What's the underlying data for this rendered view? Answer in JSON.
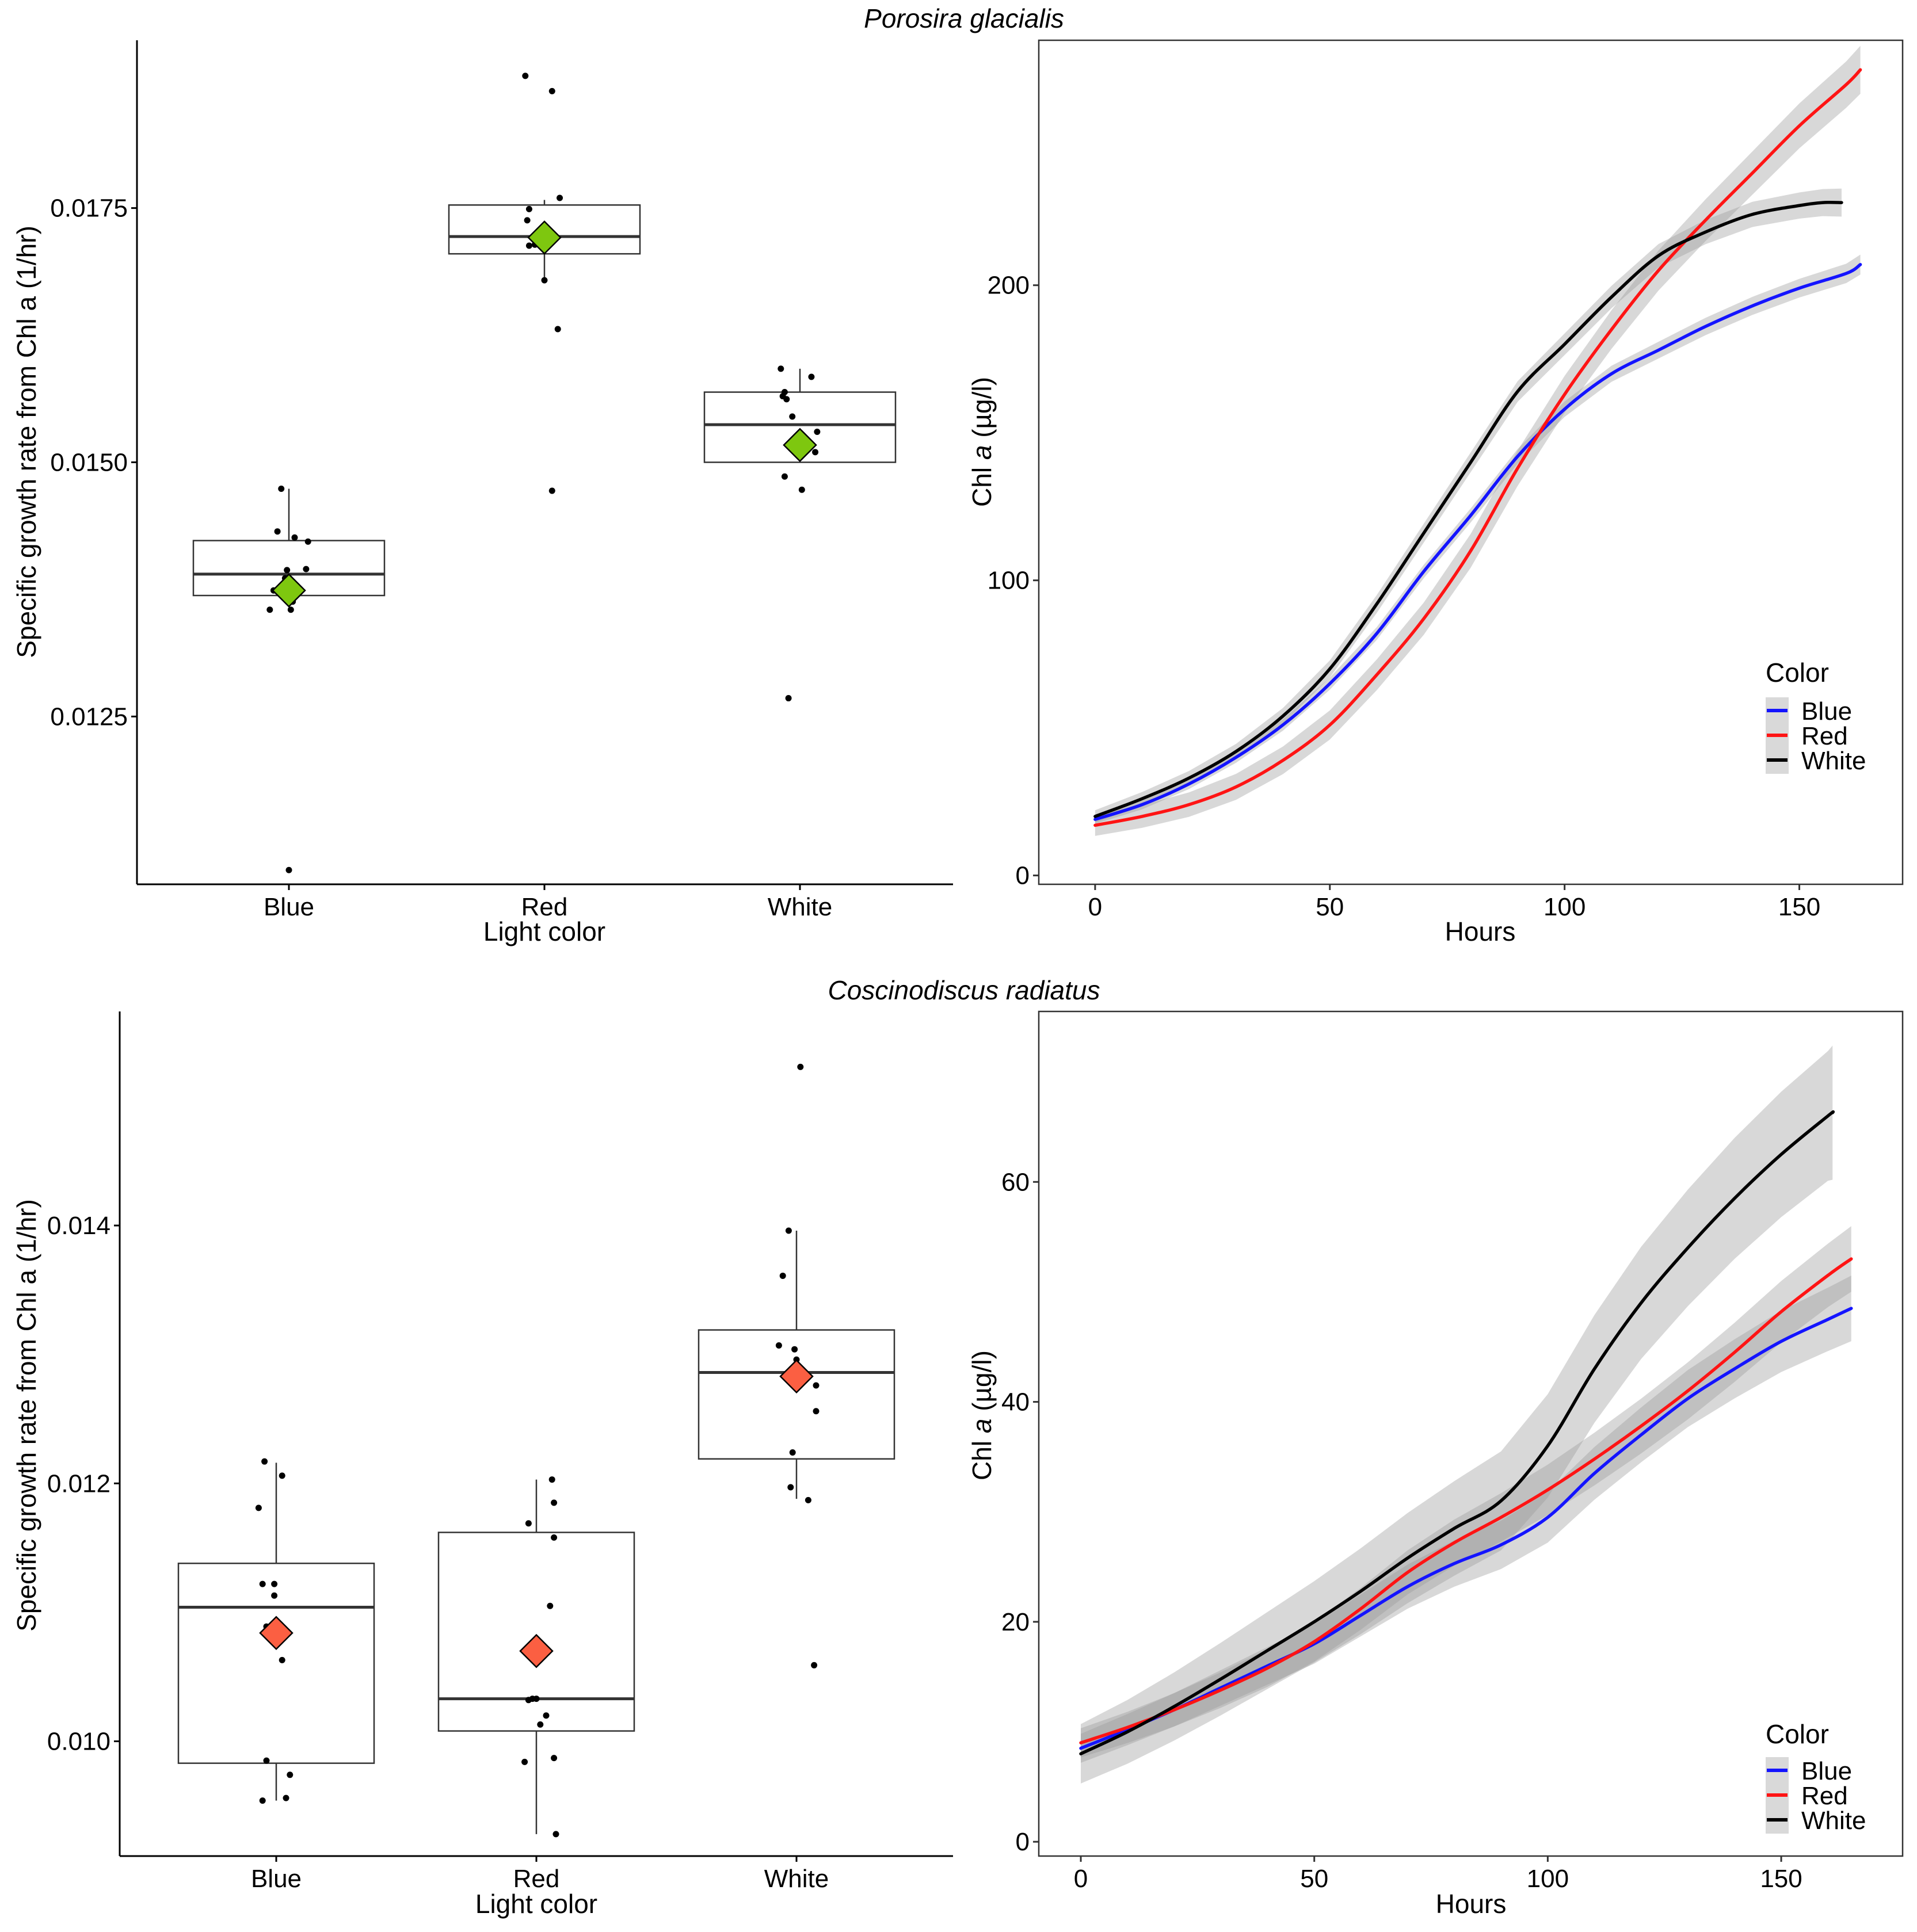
{
  "figure": {
    "panels": [
      {
        "title": "Porosira glacialis",
        "box": {
          "ylabel": "Specific growth rate from Chl a (1/hr)",
          "xlabel": "Light color",
          "mean_color": "#7ec70f",
          "ylim": [
            0.01085,
            0.01915
          ],
          "yticks": [
            0.0125,
            0.015,
            0.0175
          ],
          "ytick_labels": [
            "0.0125",
            "0.0150",
            "0.0175"
          ],
          "categories": [
            "Blue",
            "Red",
            "White"
          ],
          "stats": [
            {
              "q1": 0.01369,
              "median": 0.0139,
              "q3": 0.01423,
              "whisker_low": 0.01369,
              "whisker_high": 0.01474,
              "mean": 0.01374
            },
            {
              "q1": 0.01705,
              "median": 0.01722,
              "q3": 0.01753,
              "whisker_low": 0.0168,
              "whisker_high": 0.01758,
              "mean": 0.01721
            },
            {
              "q1": 0.015,
              "median": 0.01537,
              "q3": 0.01569,
              "whisker_low": 0.015,
              "whisker_high": 0.01592,
              "mean": 0.01517
            }
          ],
          "points": [
            [
              [
                -0.04,
                0.01474
              ],
              [
                -0.06,
                0.01432
              ],
              [
                0.03,
                0.01426
              ],
              [
                0.1,
                0.01422
              ],
              [
                -0.01,
                0.01394
              ],
              [
                0.09,
                0.01395
              ],
              [
                -0.02,
                0.01386
              ],
              [
                -0.08,
                0.01374
              ],
              [
                0.02,
                0.01363
              ],
              [
                -0.1,
                0.01355
              ],
              [
                0.01,
                0.01355
              ],
              [
                0.0,
                0.01099
              ]
            ],
            [
              [
                -0.1,
                0.0188
              ],
              [
                0.04,
                0.01865
              ],
              [
                0.08,
                0.0176
              ],
              [
                -0.08,
                0.01749
              ],
              [
                -0.09,
                0.01738
              ],
              [
                -0.05,
                0.01714
              ],
              [
                -0.08,
                0.01713
              ],
              [
                0.0,
                0.01679
              ],
              [
                0.07,
                0.01631
              ],
              [
                0.04,
                0.01472
              ]
            ],
            [
              [
                -0.1,
                0.01592
              ],
              [
                0.06,
                0.01584
              ],
              [
                -0.08,
                0.01569
              ],
              [
                -0.09,
                0.01565
              ],
              [
                -0.07,
                0.01562
              ],
              [
                -0.04,
                0.01545
              ],
              [
                0.09,
                0.0153
              ],
              [
                0.08,
                0.0151
              ],
              [
                -0.08,
                0.01486
              ],
              [
                0.01,
                0.01473
              ],
              [
                -0.06,
                0.01268
              ]
            ]
          ]
        },
        "line": {
          "xlabel": "Hours",
          "ylabel_prefix": "Chl ",
          "ylabel_italic": "a",
          "ylabel_suffix": " (µg/l)",
          "xlim": [
            -12,
            172
          ],
          "ylim": [
            -3,
            283
          ],
          "xticks": [
            0,
            50,
            100,
            150
          ],
          "xtick_labels": [
            "0",
            "50",
            "100",
            "150"
          ],
          "yticks": [
            0,
            100,
            200
          ],
          "ytick_labels": [
            "0",
            "100",
            "200"
          ],
          "legend_title": "Color",
          "series": [
            {
              "name": "Blue",
              "color": "#1414ff",
              "band": 2.5,
              "x": [
                0,
                10,
                20,
                30,
                40,
                50,
                60,
                70,
                80,
                90,
                100,
                110,
                120,
                130,
                140,
                150,
                160,
                163
              ],
              "y": [
                19,
                24,
                31,
                40,
                51,
                65,
                82,
                103,
                122,
                142,
                158,
                170,
                178,
                186,
                193,
                199,
                204,
                207
              ]
            },
            {
              "name": "Red",
              "color": "#ff1414",
              "band": 6,
              "x": [
                0,
                10,
                20,
                30,
                40,
                50,
                60,
                70,
                80,
                90,
                100,
                110,
                120,
                130,
                140,
                150,
                160,
                163
              ],
              "y": [
                17,
                20,
                24,
                30,
                39,
                51,
                68,
                87,
                110,
                138,
                163,
                185,
                205,
                222,
                238,
                254,
                268,
                273
              ]
            },
            {
              "name": "White",
              "color": "#000000",
              "band": 3.5,
              "x": [
                0,
                10,
                20,
                30,
                40,
                50,
                60,
                70,
                80,
                90,
                100,
                110,
                120,
                130,
                140,
                150,
                155,
                159
              ],
              "y": [
                20,
                26,
                33,
                42,
                54,
                70,
                92,
                116,
                140,
                164,
                180,
                196,
                210,
                218,
                224,
                227,
                228,
                228
              ]
            }
          ]
        }
      },
      {
        "title": "Coscinodiscus radiatus",
        "box": {
          "ylabel": "Specific growth rate from Chl a (1/hr)",
          "xlabel": "Light color",
          "mean_color": "#fb5f42",
          "ylim": [
            0.00911,
            0.01566
          ],
          "yticks": [
            0.01,
            0.012,
            0.014
          ],
          "ytick_labels": [
            "0.010",
            "0.012",
            "0.014"
          ],
          "categories": [
            "Blue",
            "Red",
            "White"
          ],
          "stats": [
            {
              "q1": 0.00983,
              "median": 0.01104,
              "q3": 0.01138,
              "whisker_low": 0.00954,
              "whisker_high": 0.01216,
              "mean": 0.01084
            },
            {
              "q1": 0.01008,
              "median": 0.01033,
              "q3": 0.01162,
              "whisker_low": 0.00928,
              "whisker_high": 0.01203,
              "mean": 0.0107
            },
            {
              "q1": 0.01219,
              "median": 0.01286,
              "q3": 0.01319,
              "whisker_low": 0.01188,
              "whisker_high": 0.01396,
              "mean": 0.01283
            }
          ],
          "points": [
            [
              [
                -0.06,
                0.01217
              ],
              [
                0.03,
                0.01206
              ],
              [
                -0.09,
                0.01181
              ],
              [
                -0.07,
                0.01122
              ],
              [
                -0.01,
                0.01122
              ],
              [
                -0.01,
                0.01113
              ],
              [
                -0.05,
                0.01089
              ],
              [
                0.03,
                0.01063
              ],
              [
                -0.05,
                0.00985
              ],
              [
                0.07,
                0.00974
              ],
              [
                -0.07,
                0.00954
              ],
              [
                0.05,
                0.00956
              ]
            ],
            [
              [
                0.08,
                0.01203
              ],
              [
                0.09,
                0.01185
              ],
              [
                -0.04,
                0.01169
              ],
              [
                0.09,
                0.01158
              ],
              [
                0.07,
                0.01105
              ],
              [
                -0.02,
                0.01033
              ],
              [
                0.0,
                0.01033
              ],
              [
                -0.04,
                0.01032
              ],
              [
                0.05,
                0.0102
              ],
              [
                0.02,
                0.01013
              ],
              [
                -0.06,
                0.00984
              ],
              [
                0.09,
                0.00987
              ],
              [
                0.1,
                0.00928
              ]
            ],
            [
              [
                0.02,
                0.01523
              ],
              [
                -0.04,
                0.01396
              ],
              [
                -0.07,
                0.01361
              ],
              [
                -0.09,
                0.01307
              ],
              [
                -0.01,
                0.01304
              ],
              [
                0.0,
                0.01296
              ],
              [
                0.1,
                0.01276
              ],
              [
                0.1,
                0.01256
              ],
              [
                -0.02,
                0.01224
              ],
              [
                -0.03,
                0.01197
              ],
              [
                0.06,
                0.01187
              ],
              [
                0.09,
                0.01059
              ]
            ]
          ]
        },
        "line": {
          "xlabel": "Hours",
          "ylabel_prefix": "Chl ",
          "ylabel_italic": "a",
          "ylabel_suffix": " (µg/l)",
          "xlim": [
            -9,
            176
          ],
          "ylim": [
            -1.3,
            75.5
          ],
          "xticks": [
            0,
            50,
            100,
            150
          ],
          "xtick_labels": [
            "0",
            "50",
            "100",
            "150"
          ],
          "yticks": [
            0,
            20,
            40,
            60
          ],
          "ytick_labels": [
            "0",
            "20",
            "40",
            "60"
          ],
          "legend_title": "Color",
          "series": [
            {
              "name": "Blue",
              "color": "#1414ff",
              "band": 2.2,
              "x": [
                0,
                10,
                20,
                30,
                40,
                50,
                60,
                70,
                80,
                90,
                100,
                110,
                120,
                130,
                140,
                150,
                160,
                165
              ],
              "y": [
                8.5,
                10.2,
                12.0,
                14.0,
                16.0,
                18.0,
                20.6,
                23.2,
                25.3,
                27.0,
                29.5,
                33.5,
                37.0,
                40.3,
                43.0,
                45.5,
                47.5,
                48.5
              ]
            },
            {
              "name": "Red",
              "color": "#ff1414",
              "band": 2.2,
              "x": [
                0,
                10,
                20,
                30,
                40,
                50,
                60,
                70,
                80,
                90,
                100,
                110,
                120,
                130,
                140,
                150,
                160,
                165
              ],
              "y": [
                9.0,
                10.4,
                12.0,
                13.8,
                15.8,
                18.2,
                21.2,
                24.5,
                27.2,
                29.5,
                32.0,
                34.8,
                37.8,
                41.0,
                44.5,
                48.2,
                51.5,
                53.0
              ]
            },
            {
              "name": "White",
              "color": "#000000",
              "band": 4.5,
              "x": [
                0,
                10,
                20,
                30,
                40,
                50,
                60,
                70,
                80,
                90,
                100,
                110,
                120,
                130,
                140,
                150,
                160,
                161
              ],
              "y": [
                8.0,
                10.0,
                12.3,
                14.8,
                17.4,
                20.0,
                22.8,
                25.8,
                28.5,
                31.0,
                36.0,
                43.0,
                49.0,
                54.0,
                58.5,
                62.5,
                66.0,
                66.3
              ]
            }
          ]
        }
      }
    ]
  }
}
